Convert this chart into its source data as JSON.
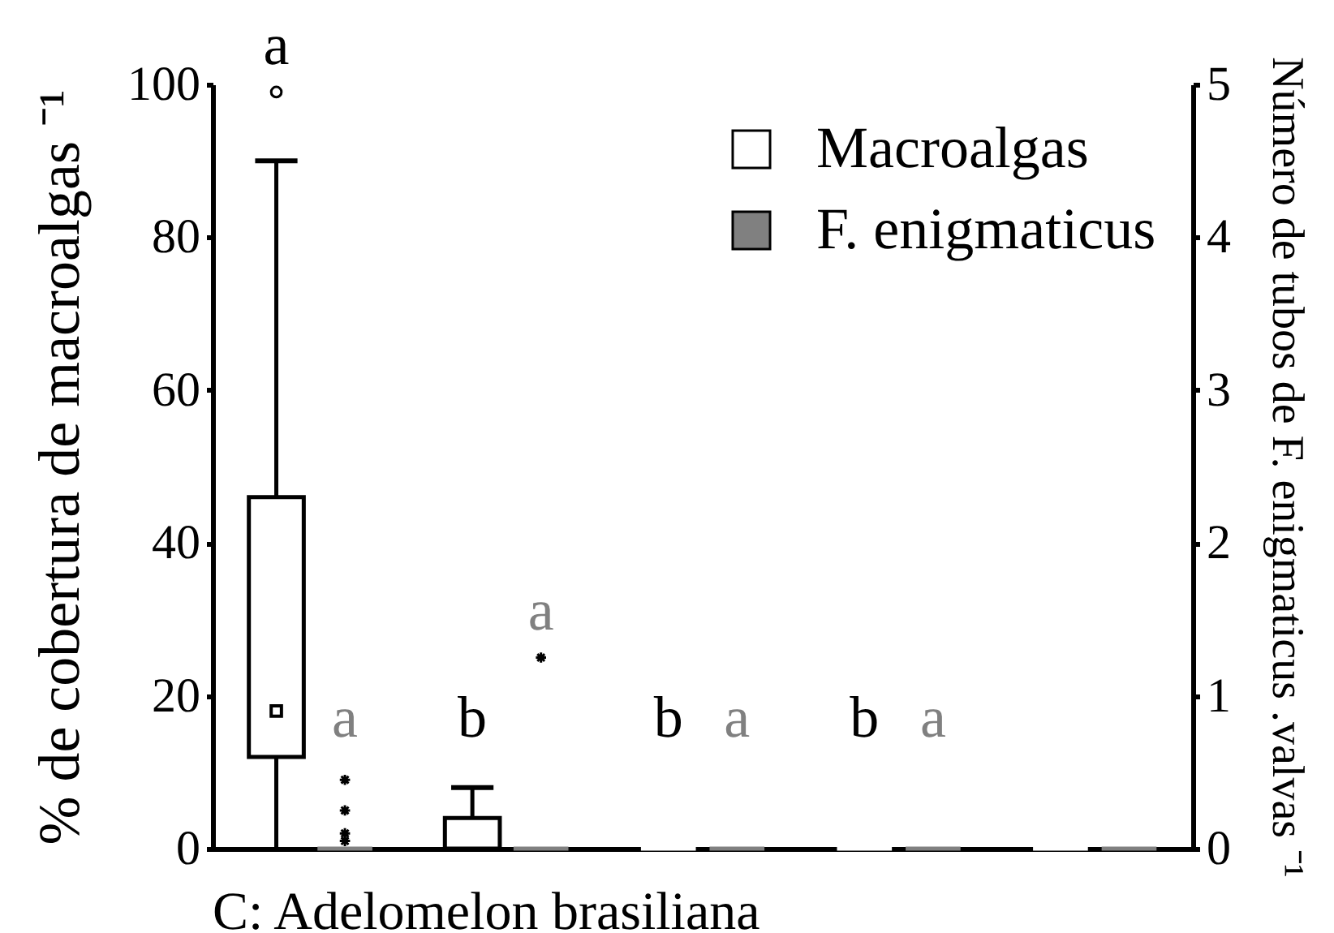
{
  "chart_data": {
    "type": "box",
    "title": "C: Adelomelon brasiliana",
    "ylabel": "% de cobertura de macroalgas ⁻¹",
    "y2label": "Número de tubos de F. enigmaticus .valvas ⁻¹",
    "categories": [
      null,
      null,
      null,
      null,
      null
    ],
    "ylim": [
      0,
      100
    ],
    "yticks": [
      0,
      20,
      40,
      60,
      80,
      100
    ],
    "y2lim": [
      0,
      5
    ],
    "y2ticks": [
      0,
      1,
      2,
      3,
      4,
      5
    ],
    "grid": false,
    "legend": "top right",
    "series": [
      {
        "name": "Macroalgas",
        "color": "#ffffff",
        "marker": "circle",
        "boxes": [
          {
            "low": 0,
            "q1": 12,
            "median": 18,
            "q3": 46,
            "high": 90,
            "outliers": [
              99
            ]
          },
          {
            "low": 0,
            "q1": 0,
            "median": 0,
            "q3": 4,
            "high": 8
          },
          {
            "low": 0,
            "q1": 0,
            "median": 0,
            "q3": 0,
            "high": 0
          },
          {
            "low": 0,
            "q1": 0,
            "median": 0,
            "q3": 0,
            "high": 0
          },
          {
            "low": 0,
            "q1": 0,
            "median": 0,
            "q3": 0,
            "high": 0
          }
        ],
        "value_labels": [
          "a",
          "b",
          "b",
          "b",
          null
        ]
      },
      {
        "name": "F. enigmaticus",
        "color": "#808080",
        "axis": "y2",
        "marker": "star",
        "boxes": [
          {
            "low": 0,
            "q1": 0,
            "median": 0,
            "q3": 0,
            "high": 0,
            "outliers": [
              0.05,
              0.1,
              0.25,
              0.45
            ]
          },
          {
            "low": 0,
            "q1": 0,
            "median": 0,
            "q3": 0,
            "high": 0,
            "outliers": [
              1.25
            ]
          },
          {
            "low": 0,
            "q1": 0,
            "median": 0,
            "q3": 0,
            "high": 0
          },
          {
            "low": 0,
            "q1": 0,
            "median": 0,
            "q3": 0,
            "high": 0
          },
          {
            "low": 0,
            "q1": 0,
            "median": 0,
            "q3": 0,
            "high": 0
          }
        ],
        "value_labels": [
          "a",
          "a",
          "a",
          "a",
          null
        ]
      }
    ]
  }
}
